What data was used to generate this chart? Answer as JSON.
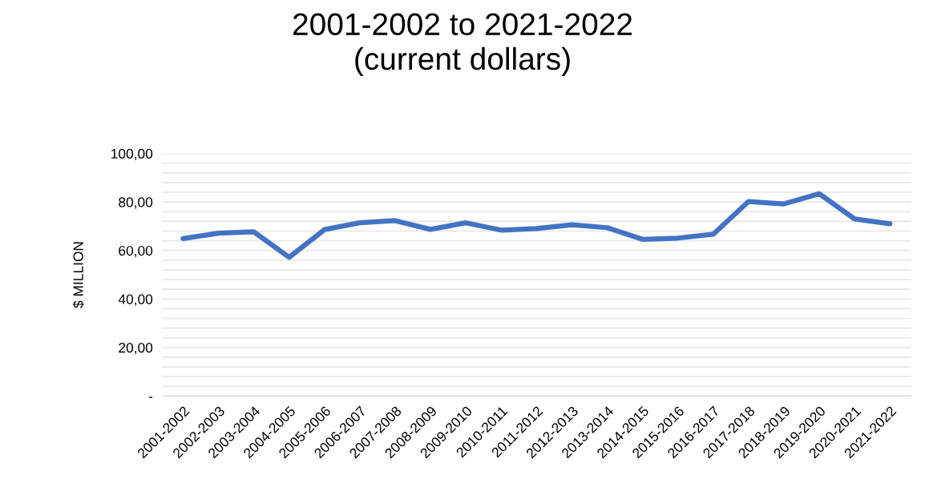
{
  "chart_data": {
    "type": "line",
    "title": "2001-2002 to 2021-2022\n(current dollars)",
    "ylabel": "$ MILLION",
    "categories": [
      "2001-2002",
      "2002-2003",
      "2003-2004",
      "2004-2005",
      "2005-2006",
      "2006-2007",
      "2007-2008",
      "2008-2009",
      "2009-2010",
      "2010-2011",
      "2011-2012",
      "2012-2013",
      "2013-2014",
      "2014-2015",
      "2015-2016",
      "2016-2017",
      "2017-2018",
      "2018-2019",
      "2019-2020",
      "2020-2021",
      "2021-2022"
    ],
    "series": [
      {
        "color": "#4472c4",
        "values": [
          64.9,
          67.1,
          67.7,
          57.2,
          68.6,
          71.4,
          72.3,
          68.7,
          71.4,
          68.4,
          69.0,
          70.6,
          69.4,
          64.6,
          65.1,
          66.7,
          80.2,
          79.2,
          83.4,
          73.0,
          71.0
        ]
      }
    ],
    "ylim": [
      0,
      100
    ],
    "yticks": [
      {
        "value": 0,
        "label": "-"
      },
      {
        "value": 4,
        "label": null
      },
      {
        "value": 8,
        "label": null
      },
      {
        "value": 12,
        "label": null
      },
      {
        "value": 16,
        "label": null
      },
      {
        "value": 20,
        "label": "20,00"
      },
      {
        "value": 24,
        "label": null
      },
      {
        "value": 28,
        "label": null
      },
      {
        "value": 32,
        "label": null
      },
      {
        "value": 36,
        "label": null
      },
      {
        "value": 40,
        "label": "40,00"
      },
      {
        "value": 44,
        "label": null
      },
      {
        "value": 48,
        "label": null
      },
      {
        "value": 52,
        "label": null
      },
      {
        "value": 56,
        "label": null
      },
      {
        "value": 60,
        "label": "60,00"
      },
      {
        "value": 64,
        "label": null
      },
      {
        "value": 68,
        "label": null
      },
      {
        "value": 72,
        "label": null
      },
      {
        "value": 76,
        "label": null
      },
      {
        "value": 80,
        "label": "80,00"
      },
      {
        "value": 84,
        "label": null
      },
      {
        "value": 88,
        "label": null
      },
      {
        "value": 92,
        "label": null
      },
      {
        "value": 96,
        "label": null
      },
      {
        "value": 100,
        "label": "100,00"
      }
    ],
    "grid": "y",
    "marker": "none",
    "line_style": "solid"
  }
}
